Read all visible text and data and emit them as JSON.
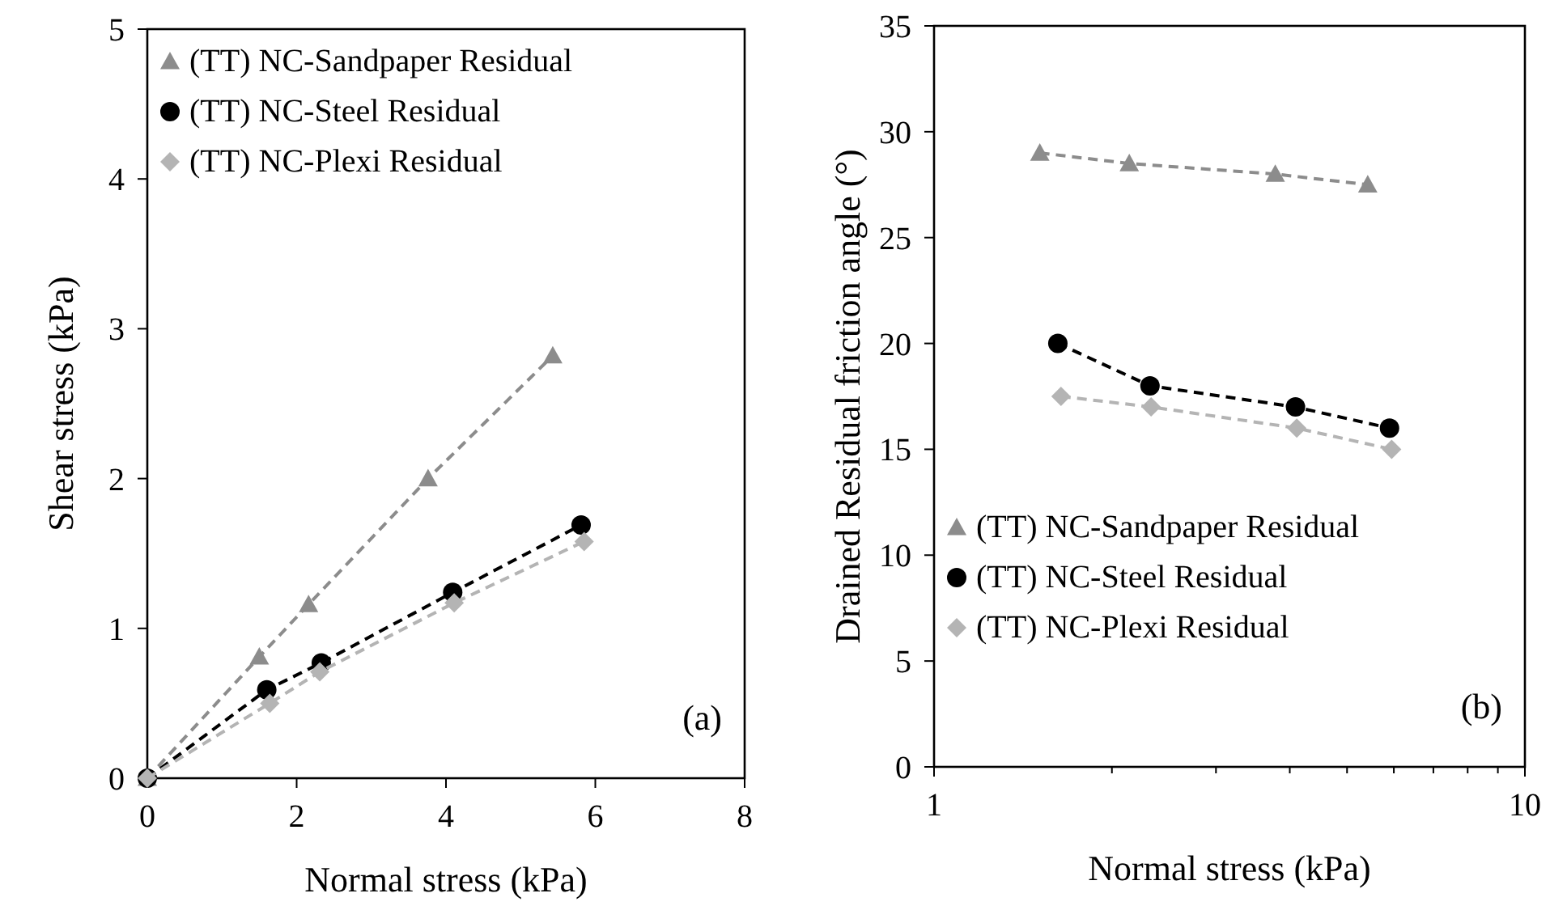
{
  "chart_data": [
    {
      "type": "line",
      "xlabel": "Normal stress (kPa)",
      "ylabel": "Shear stress (kPa)",
      "xlim": [
        0,
        8
      ],
      "xticks": [
        0,
        2,
        4,
        6,
        8
      ],
      "ylim": [
        0,
        5
      ],
      "yticks": [
        0,
        1,
        2,
        3,
        4,
        5
      ],
      "grid": false,
      "legend": "top left",
      "line_style": "dashed",
      "annotations": [
        "(a)"
      ],
      "series": [
        {
          "name": "(TT) NC-Sandpaper Residual",
          "color": "#8c8c8c",
          "marker": "triangle",
          "x": [
            0,
            1.5,
            2.16,
            3.76,
            5.43
          ],
          "values": [
            0,
            0.81,
            1.16,
            2.0,
            2.82
          ]
        },
        {
          "name": "(TT) NC-Steel Residual",
          "color": "#000000",
          "marker": "circle",
          "x": [
            0,
            1.6,
            2.33,
            4.09,
            5.81
          ],
          "values": [
            0,
            0.59,
            0.77,
            1.24,
            1.69
          ]
        },
        {
          "name": "(TT) NC-Plexi Residual",
          "color": "#b4b4b4",
          "marker": "diamond",
          "x": [
            0,
            1.64,
            2.31,
            4.11,
            5.85
          ],
          "values": [
            0,
            0.5,
            0.71,
            1.17,
            1.58
          ]
        }
      ]
    },
    {
      "type": "line",
      "xlabel": "Normal stress (kPa)",
      "ylabel": "Drained Residual friction angle (°)",
      "log": "x",
      "xlim": [
        1,
        10
      ],
      "xticks": [
        1,
        {
          "value": 2,
          "label": null
        },
        {
          "value": 3,
          "label": null
        },
        {
          "value": 4,
          "label": null
        },
        {
          "value": 5,
          "label": null
        },
        {
          "value": 6,
          "label": null
        },
        {
          "value": 7,
          "label": null
        },
        {
          "value": 8,
          "label": null
        },
        {
          "value": 9,
          "label": null
        },
        10
      ],
      "ylim": [
        0,
        35
      ],
      "yticks": [
        0,
        5,
        10,
        15,
        20,
        25,
        30,
        35
      ],
      "grid": false,
      "legend": "bottom left",
      "line_style": "dashed",
      "annotations": [
        "(b)"
      ],
      "series": [
        {
          "name": "(TT) NC-Sandpaper Residual",
          "color": "#8c8c8c",
          "marker": "triangle",
          "x": [
            1.51,
            2.14,
            3.78,
            5.42
          ],
          "values": [
            29.0,
            28.5,
            28.0,
            27.5
          ]
        },
        {
          "name": "(TT) NC-Steel Residual",
          "color": "#000000",
          "marker": "circle",
          "x": [
            1.62,
            2.32,
            4.09,
            5.9
          ],
          "values": [
            20.0,
            18.0,
            17.0,
            16.0
          ]
        },
        {
          "name": "(TT) NC-Plexi Residual",
          "color": "#b4b4b4",
          "marker": "diamond",
          "x": [
            1.64,
            2.33,
            4.11,
            5.95
          ],
          "values": [
            17.5,
            17.0,
            16.0,
            15.0
          ]
        }
      ]
    }
  ]
}
